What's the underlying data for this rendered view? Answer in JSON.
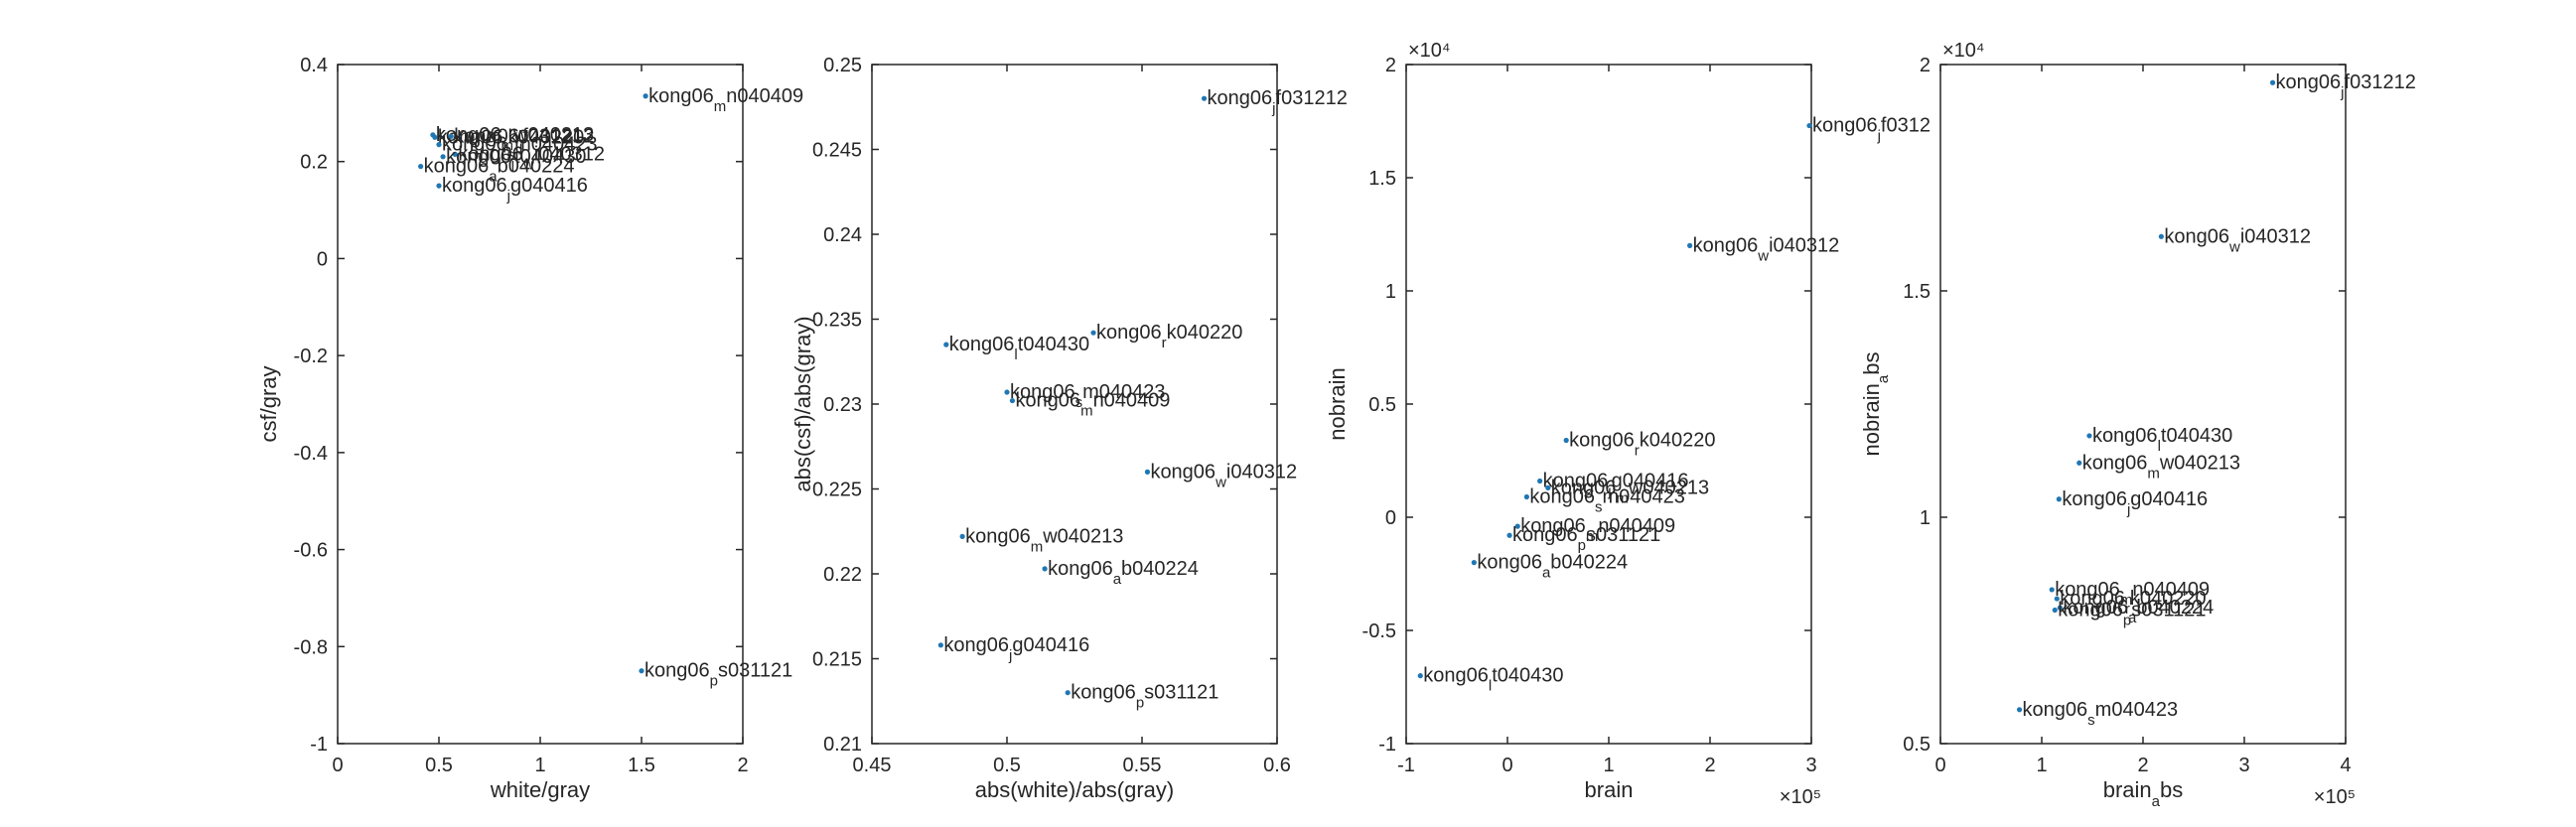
{
  "chart_data": [
    {
      "type": "scatter",
      "xlabel": "white/gray",
      "ylabel": "csf/gray",
      "xlim": [
        0,
        2
      ],
      "ylim": [
        -1,
        0.4
      ],
      "xticks": [
        "0",
        "0.5",
        "1",
        "1.5",
        "2"
      ],
      "yticks": [
        "-1",
        "-0.8",
        "-0.6",
        "-0.4",
        "-0.2",
        "0",
        "0.2",
        "0.4"
      ],
      "xexp": "",
      "yexp": "",
      "points": [
        {
          "x": 1.52,
          "y": 0.335,
          "main": "kong06",
          "sub": "m",
          "rest": "n040409"
        },
        {
          "x": 0.47,
          "y": 0.255,
          "main": "kong06",
          "sub": "m",
          "rest": "w040213"
        },
        {
          "x": 0.48,
          "y": 0.25,
          "main": "kong06",
          "sub": "r",
          "rest": "k040220"
        },
        {
          "x": 0.56,
          "y": 0.252,
          "main": "kong06",
          "sub": "j",
          "rest": "f031212"
        },
        {
          "x": 0.5,
          "y": 0.235,
          "main": "kong06",
          "sub": "s",
          "rest": "m040423"
        },
        {
          "x": 0.58,
          "y": 0.215,
          "main": "kong06",
          "sub": "w",
          "rest": "i040312"
        },
        {
          "x": 0.52,
          "y": 0.21,
          "main": "kong06",
          "sub": "l",
          "rest": "t040430"
        },
        {
          "x": 0.41,
          "y": 0.19,
          "main": "kong06",
          "sub": "a",
          "rest": "b040224"
        },
        {
          "x": 0.5,
          "y": 0.15,
          "main": "kong06",
          "sub": "j",
          "rest": "g040416"
        },
        {
          "x": 1.5,
          "y": -0.85,
          "main": "kong06",
          "sub": "p",
          "rest": "s031121"
        }
      ]
    },
    {
      "type": "scatter",
      "xlabel": "abs(white)/abs(gray)",
      "ylabel": "abs(csf)/abs(gray)",
      "xlim": [
        0.45,
        0.6
      ],
      "ylim": [
        0.21,
        0.25
      ],
      "xticks": [
        "0.45",
        "0.5",
        "0.55",
        "0.6"
      ],
      "yticks": [
        "0.21",
        "0.215",
        "0.22",
        "0.225",
        "0.23",
        "0.235",
        "0.24",
        "0.245",
        "0.25"
      ],
      "xexp": "",
      "yexp": "",
      "points": [
        {
          "x": 0.573,
          "y": 0.248,
          "main": "kong06",
          "sub": "j",
          "rest": "f031212"
        },
        {
          "x": 0.532,
          "y": 0.2342,
          "main": "kong06",
          "sub": "r",
          "rest": "k040220"
        },
        {
          "x": 0.4775,
          "y": 0.2335,
          "main": "kong06",
          "sub": "l",
          "rest": "t040430"
        },
        {
          "x": 0.5,
          "y": 0.2307,
          "main": "kong06",
          "sub": "s",
          "rest": "m040423"
        },
        {
          "x": 0.502,
          "y": 0.2302,
          "main": "kong06",
          "sub": "m",
          "rest": "n040409"
        },
        {
          "x": 0.552,
          "y": 0.226,
          "main": "kong06",
          "sub": "w",
          "rest": "i040312"
        },
        {
          "x": 0.4835,
          "y": 0.2222,
          "main": "kong06",
          "sub": "m",
          "rest": "w040213"
        },
        {
          "x": 0.514,
          "y": 0.2203,
          "main": "kong06",
          "sub": "a",
          "rest": "b040224"
        },
        {
          "x": 0.4755,
          "y": 0.2158,
          "main": "kong06",
          "sub": "j",
          "rest": "g040416"
        },
        {
          "x": 0.5225,
          "y": 0.213,
          "main": "kong06",
          "sub": "p",
          "rest": "s031121"
        }
      ]
    },
    {
      "type": "scatter",
      "xlabel": "brain",
      "ylabel": "nobrain",
      "xlim": [
        -100000,
        300000
      ],
      "ylim": [
        -10000,
        20000
      ],
      "xticks": [
        "-1",
        "0",
        "1",
        "2",
        "3"
      ],
      "yticks": [
        "-1",
        "-0.5",
        "0",
        "0.5",
        "1",
        "1.5",
        "2"
      ],
      "xexp": "×10⁵",
      "yexp": "×10⁴",
      "points": [
        {
          "x": 298000,
          "y": 17300,
          "main": "kong06",
          "sub": "j",
          "rest": "f0312"
        },
        {
          "x": 180000,
          "y": 12000,
          "main": "kong06",
          "sub": "w",
          "rest": "i040312"
        },
        {
          "x": 58000,
          "y": 3400,
          "main": "kong06",
          "sub": "r",
          "rest": "k040220"
        },
        {
          "x": 32000,
          "y": 1600,
          "main": "kong06",
          "sub": "j",
          "rest": "g040416"
        },
        {
          "x": 40000,
          "y": 1300,
          "main": "kong06",
          "sub": "m",
          "rest": "w040213"
        },
        {
          "x": 19000,
          "y": 900,
          "main": "kong06",
          "sub": "s",
          "rest": "m040423"
        },
        {
          "x": 10000,
          "y": -400,
          "main": "kong06",
          "sub": "m",
          "rest": "n040409"
        },
        {
          "x": 2000,
          "y": -800,
          "main": "kong06",
          "sub": "p",
          "rest": "s031121"
        },
        {
          "x": -33000,
          "y": -2000,
          "main": "kong06",
          "sub": "a",
          "rest": "b040224"
        },
        {
          "x": -86000,
          "y": -7000,
          "main": "kong06",
          "sub": "l",
          "rest": "t040430"
        }
      ]
    },
    {
      "type": "scatter",
      "xlabel": "brain_a_bs",
      "xlabel_main": "brain",
      "xlabel_sub": "a",
      "xlabel_rest": "bs",
      "ylabel": "nobrain_a_bs",
      "ylabel_main": "nobrain",
      "ylabel_sub": "a",
      "ylabel_rest": "bs",
      "xlim": [
        0,
        400000
      ],
      "ylim": [
        5000,
        20000
      ],
      "xticks": [
        "0",
        "1",
        "2",
        "3",
        "4"
      ],
      "yticks": [
        "0.5",
        "1",
        "1.5",
        "2"
      ],
      "xexp": "×10⁵",
      "yexp": "×10⁴",
      "points": [
        {
          "x": 328000,
          "y": 19600,
          "main": "kong06",
          "sub": "j",
          "rest": "f031212"
        },
        {
          "x": 218000,
          "y": 16200,
          "main": "kong06",
          "sub": "w",
          "rest": "i040312"
        },
        {
          "x": 147000,
          "y": 11800,
          "main": "kong06",
          "sub": "l",
          "rest": "t040430"
        },
        {
          "x": 137000,
          "y": 11200,
          "main": "kong06",
          "sub": "m",
          "rest": "w040213"
        },
        {
          "x": 117000,
          "y": 10400,
          "main": "kong06",
          "sub": "j",
          "rest": "g040416"
        },
        {
          "x": 110000,
          "y": 8400,
          "main": "kong06",
          "sub": "m",
          "rest": "n040409"
        },
        {
          "x": 115000,
          "y": 8200,
          "main": "kong06",
          "sub": "r",
          "rest": "k040220"
        },
        {
          "x": 118000,
          "y": 8000,
          "main": "kong06",
          "sub": "a",
          "rest": "b040224"
        },
        {
          "x": 113000,
          "y": 7950,
          "main": "kong06",
          "sub": "p",
          "rest": "s031121"
        },
        {
          "x": 78000,
          "y": 5750,
          "main": "kong06",
          "sub": "s",
          "rest": "m040423"
        }
      ]
    }
  ]
}
